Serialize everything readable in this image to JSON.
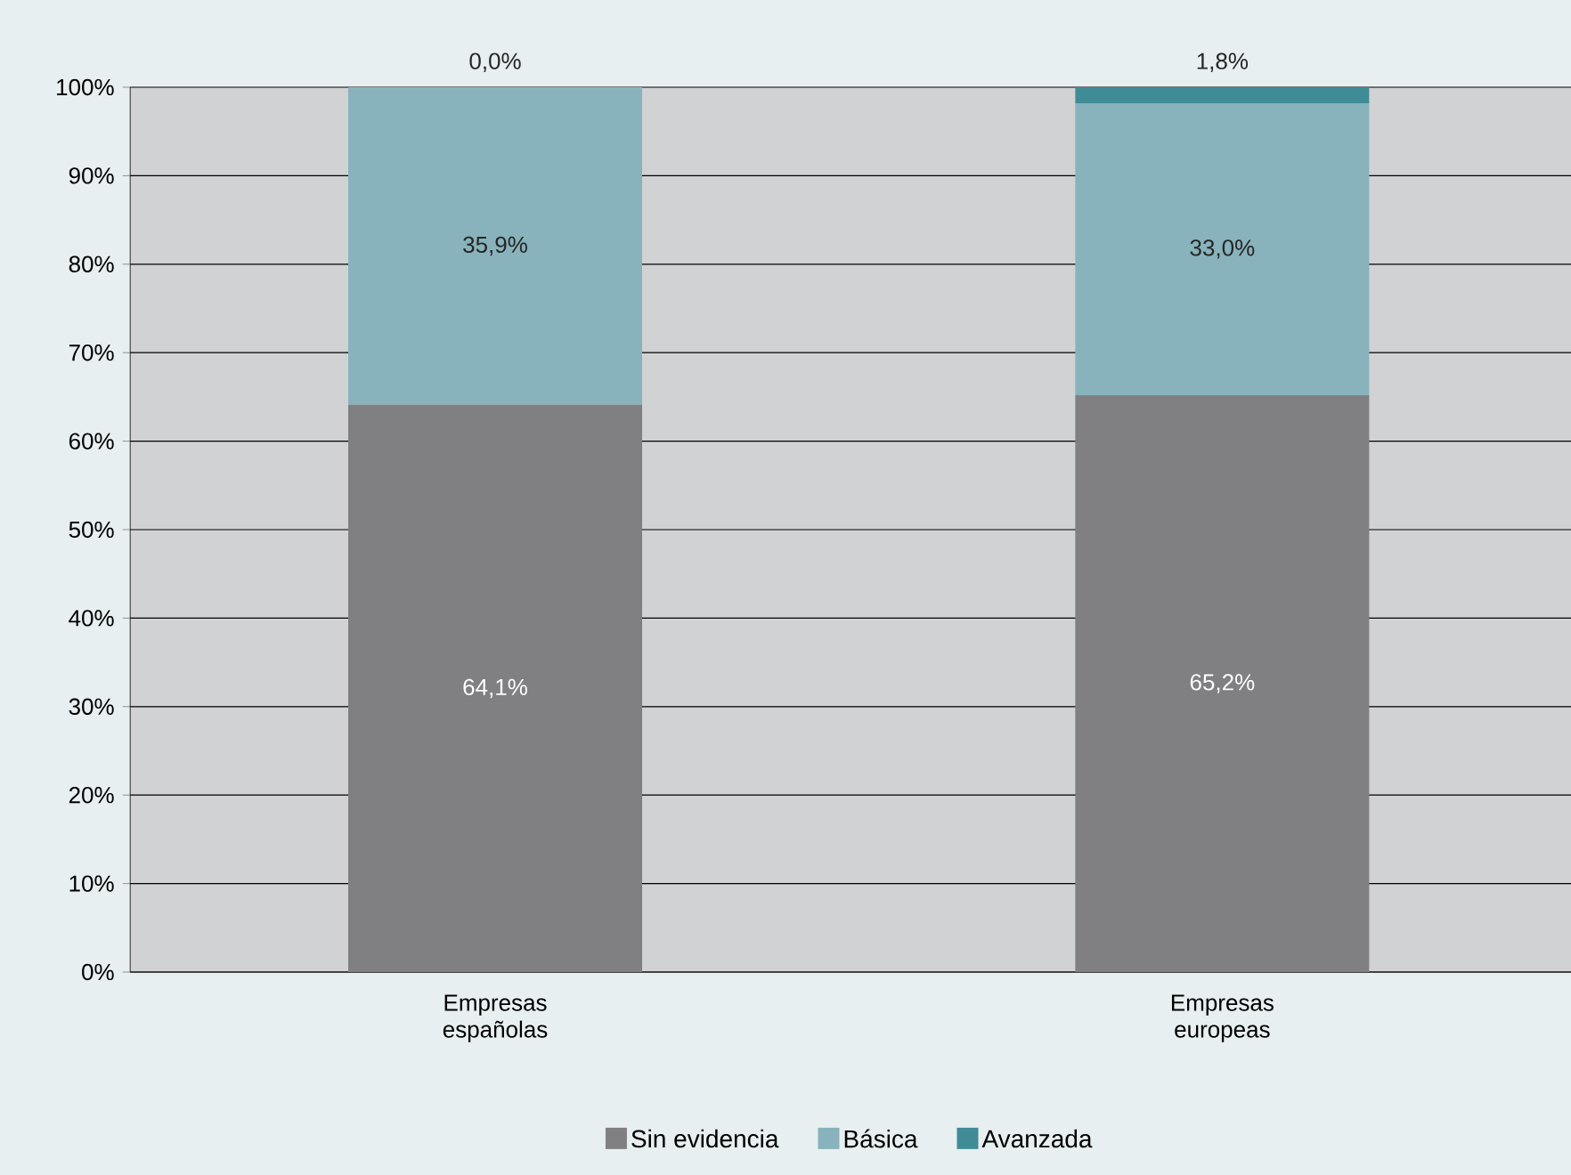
{
  "chart_data": {
    "type": "bar",
    "stacked": true,
    "categories": [
      "Empresas españolas",
      "Empresas europeas"
    ],
    "series": [
      {
        "name": "Sin evidencia",
        "color": "#808083",
        "values": [
          64.1,
          65.2
        ],
        "value_labels": [
          "64,1%",
          "65,2%"
        ]
      },
      {
        "name": "Básica",
        "color": "#88b3bc",
        "values": [
          35.9,
          33.0
        ],
        "value_labels": [
          "35,9%",
          "33,0%"
        ]
      },
      {
        "name": "Avanzada",
        "color": "#3f8c97",
        "values": [
          0.0,
          1.8
        ],
        "value_labels": [
          "0,0%",
          "1,8%"
        ]
      }
    ],
    "ylim": [
      0,
      100
    ],
    "yticks": [
      {
        "value": 0,
        "label": "0%"
      },
      {
        "value": 10,
        "label": "10%"
      },
      {
        "value": 20,
        "label": "20%"
      },
      {
        "value": 30,
        "label": "30%"
      },
      {
        "value": 40,
        "label": "40%"
      },
      {
        "value": 50,
        "label": "50%"
      },
      {
        "value": 60,
        "label": "60%"
      },
      {
        "value": 70,
        "label": "70%"
      },
      {
        "value": 80,
        "label": "80%"
      },
      {
        "value": 90,
        "label": "90%"
      },
      {
        "value": 100,
        "label": "100%"
      }
    ],
    "grid": "y",
    "legend": "bottom"
  }
}
